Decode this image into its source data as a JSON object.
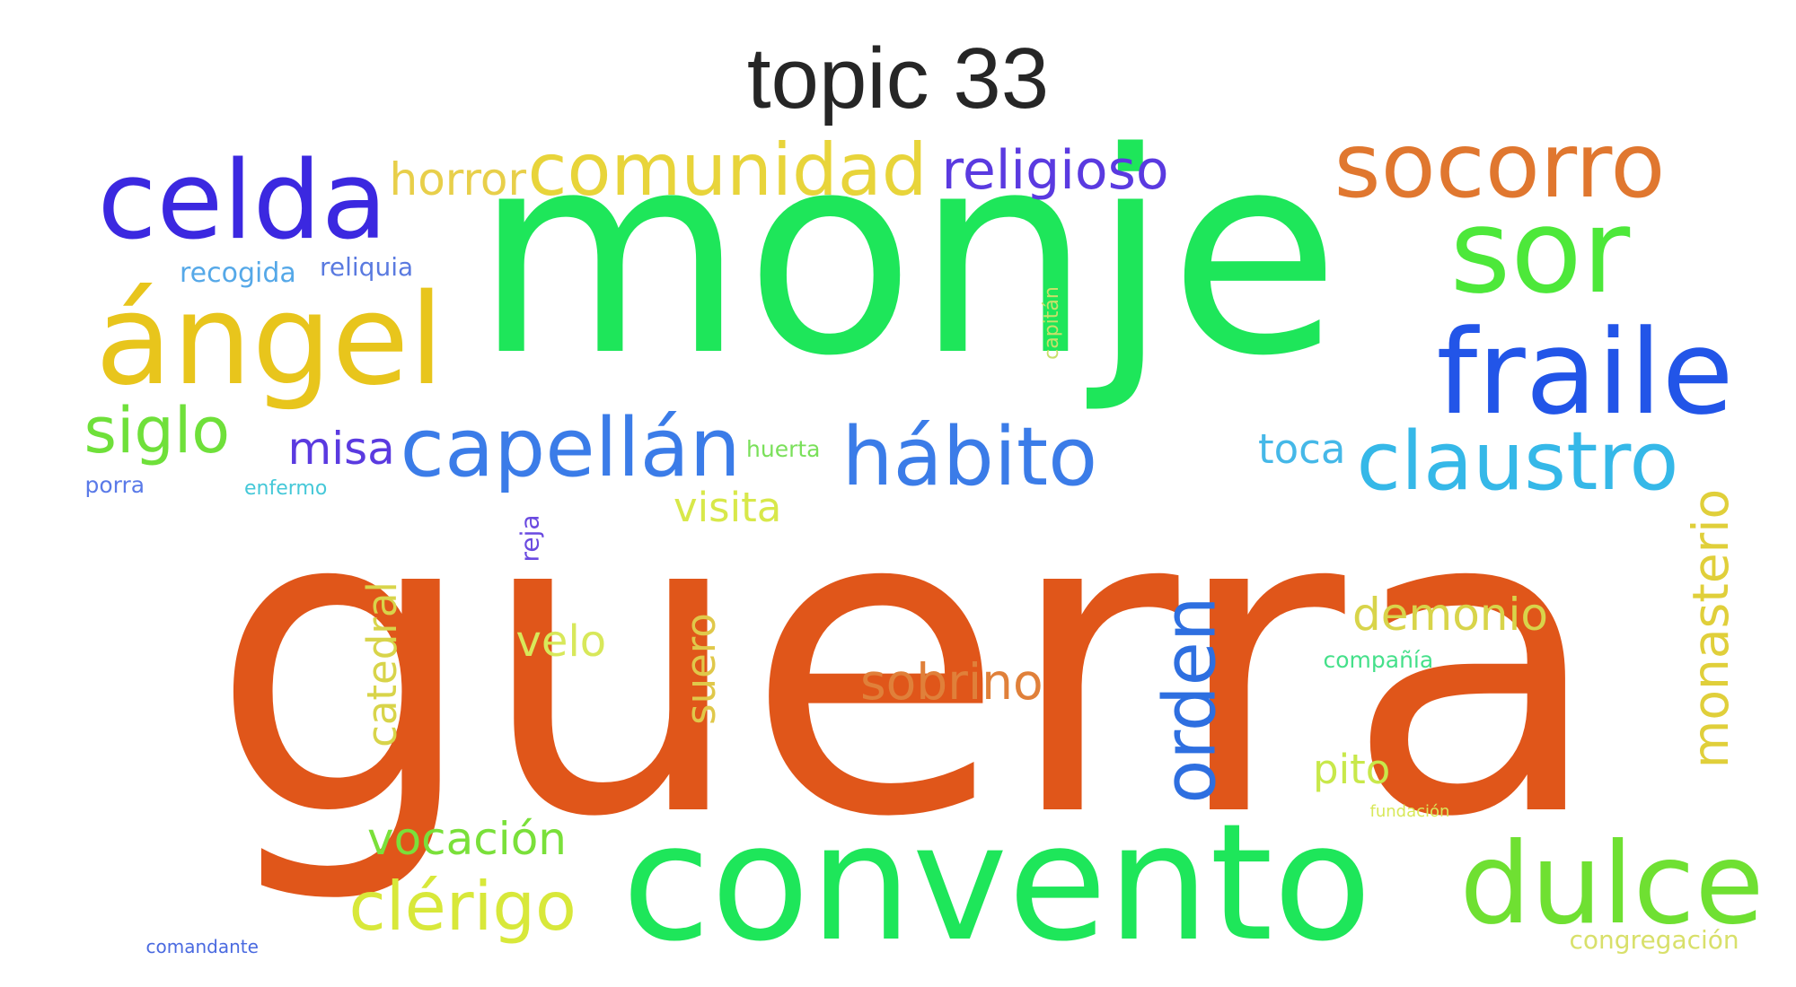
{
  "title": "topic 33",
  "words": [
    {
      "text": "guerra",
      "color": "#e0561a"
    },
    {
      "text": "monje",
      "color": "#1ee65a"
    },
    {
      "text": "convento",
      "color": "#1ee65a"
    },
    {
      "text": "celda",
      "color": "#3b28e0"
    },
    {
      "text": "ángel",
      "color": "#e8c51c"
    },
    {
      "text": "fraile",
      "color": "#2255e8"
    },
    {
      "text": "sor",
      "color": "#4de83a"
    },
    {
      "text": "socorro",
      "color": "#e0772f"
    },
    {
      "text": "dulce",
      "color": "#6fe032"
    },
    {
      "text": "comunidad",
      "color": "#e8d43a"
    },
    {
      "text": "capellán",
      "color": "#3b7ce8"
    },
    {
      "text": "hábito",
      "color": "#3b7ce8"
    },
    {
      "text": "claustro",
      "color": "#35b8e8"
    },
    {
      "text": "religioso",
      "color": "#5a3ae0"
    },
    {
      "text": "horror",
      "color": "#e8cf4a"
    },
    {
      "text": "siglo",
      "color": "#6fe03a"
    },
    {
      "text": "misa",
      "color": "#5a3ae0"
    },
    {
      "text": "toca",
      "color": "#45b8e8"
    },
    {
      "text": "orden",
      "color": "#2e6fe0"
    },
    {
      "text": "monasterio",
      "color": "#e0cf3a"
    },
    {
      "text": "sobrino",
      "color": "#e0803a"
    },
    {
      "text": "demonio",
      "color": "#d8d44a"
    },
    {
      "text": "clérigo",
      "color": "#d8e83a"
    },
    {
      "text": "vocación",
      "color": "#7ae03a"
    },
    {
      "text": "catedral",
      "color": "#d8d44a"
    },
    {
      "text": "velo",
      "color": "#d8e85a"
    },
    {
      "text": "suero",
      "color": "#e0c84a"
    },
    {
      "text": "visita",
      "color": "#d8e84a"
    },
    {
      "text": "pito",
      "color": "#c8e84a"
    },
    {
      "text": "recogida",
      "color": "#55a8e8"
    },
    {
      "text": "reliquia",
      "color": "#5a7ae0"
    },
    {
      "text": "huerta",
      "color": "#7ae05a"
    },
    {
      "text": "porra",
      "color": "#5a7ae8"
    },
    {
      "text": "enfermo",
      "color": "#45c8d8"
    },
    {
      "text": "reja",
      "color": "#6a4ae0"
    },
    {
      "text": "capitán",
      "color": "#c8e06a"
    },
    {
      "text": "compañía",
      "color": "#45e08a"
    },
    {
      "text": "fundación",
      "color": "#d8e85a"
    },
    {
      "text": "comandante",
      "color": "#4a6ae0"
    },
    {
      "text": "congregación",
      "color": "#d8e06a"
    }
  ]
}
